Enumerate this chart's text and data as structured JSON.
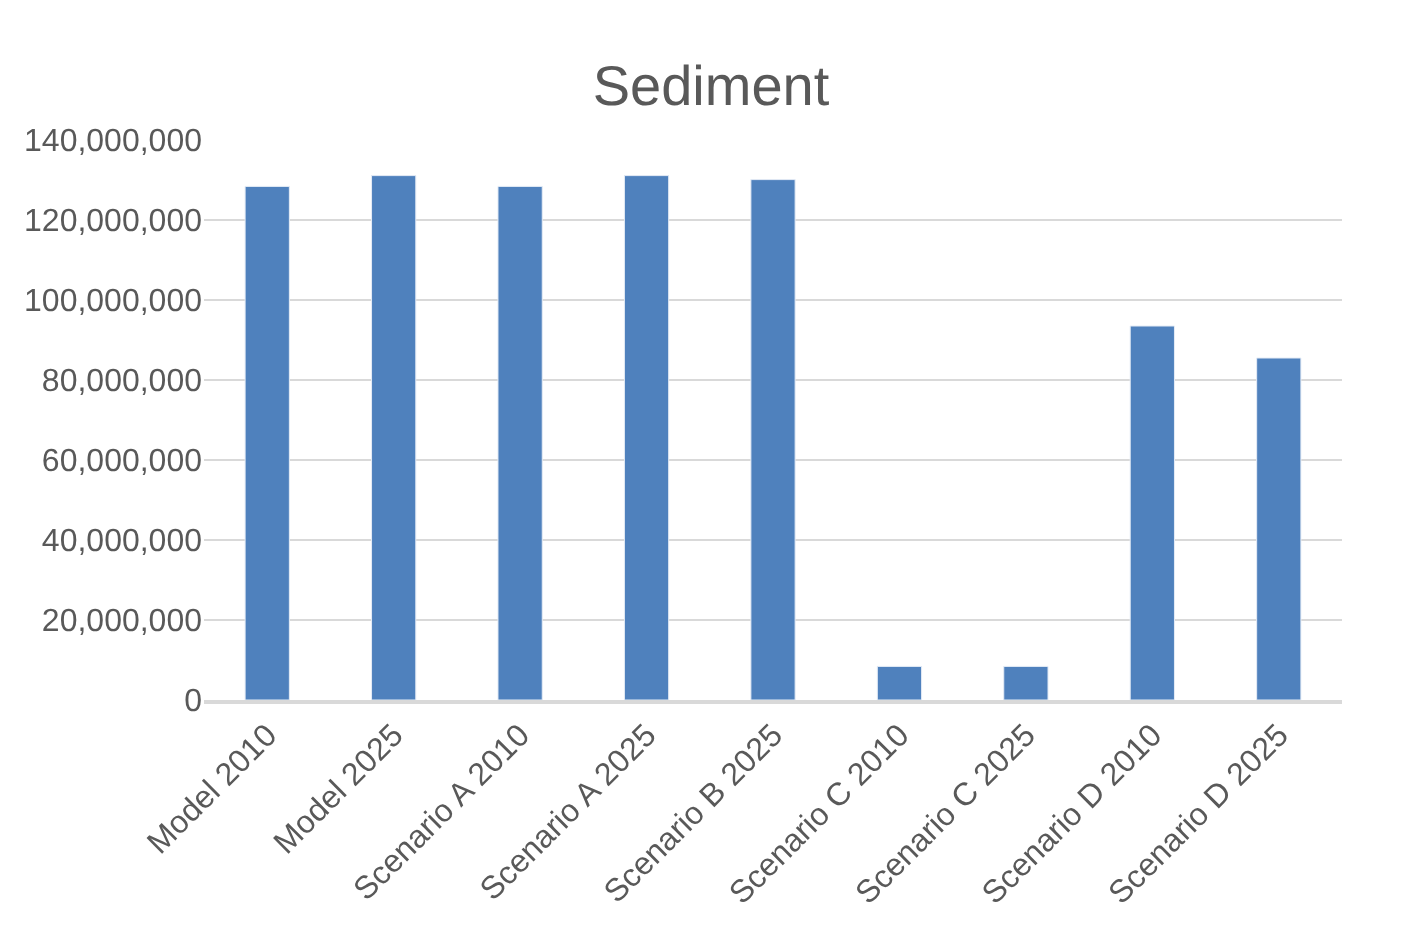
{
  "chart_data": {
    "type": "bar",
    "title": "Sediment",
    "categories": [
      "Model 2010",
      "Model 2025",
      "Scenario A 2010",
      "Scenario A 2025",
      "Scenario B 2025",
      "Scenario C 2010",
      "Scenario C 2025",
      "Scenario D 2010",
      "Scenario D 2025"
    ],
    "values": [
      128400000,
      131100000,
      128400000,
      131100000,
      130100000,
      8400000,
      8400000,
      93500000,
      85500000
    ],
    "color": "#4f81bd",
    "ylim": [
      0,
      140000000
    ],
    "yticks": [
      {
        "value": 0,
        "label": "0"
      },
      {
        "value": 20000000,
        "label": "20,000,000"
      },
      {
        "value": 40000000,
        "label": "40,000,000"
      },
      {
        "value": 60000000,
        "label": "60,000,000"
      },
      {
        "value": 80000000,
        "label": "80,000,000"
      },
      {
        "value": 100000000,
        "label": "100,000,000"
      },
      {
        "value": 120000000,
        "label": "120,000,000"
      },
      {
        "value": 140000000,
        "label": "140,000,000"
      }
    ],
    "grid": "y"
  }
}
